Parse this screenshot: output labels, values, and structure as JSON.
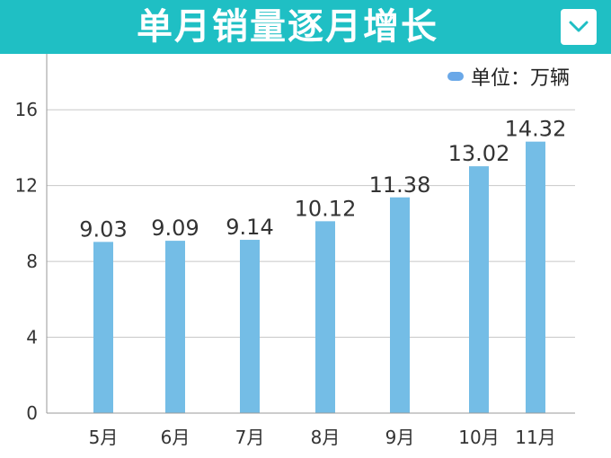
{
  "header": {
    "title": "单月销量逐月增长",
    "dropdown_icon": "chevron-down-icon"
  },
  "colors": {
    "banner": "#1fbfc4",
    "bar": "#74bde6",
    "legend_swatch": "#6aa8e8"
  },
  "chart_data": {
    "type": "bar",
    "title": "单月销量逐月增长",
    "legend": "单位：万辆",
    "legend_position": "top-right",
    "categories": [
      "5月",
      "6月",
      "7月",
      "8月",
      "9月",
      "10月",
      "11月"
    ],
    "values": [
      9.03,
      9.09,
      9.14,
      10.12,
      11.38,
      13.02,
      14.32
    ],
    "value_labels": [
      "9.03",
      "9.09",
      "9.14",
      "10.12",
      "11.38",
      "13.02",
      "14.32"
    ],
    "yticks": [
      0,
      4,
      8,
      12,
      16
    ],
    "ylim": [
      0,
      18
    ],
    "grid": true
  }
}
